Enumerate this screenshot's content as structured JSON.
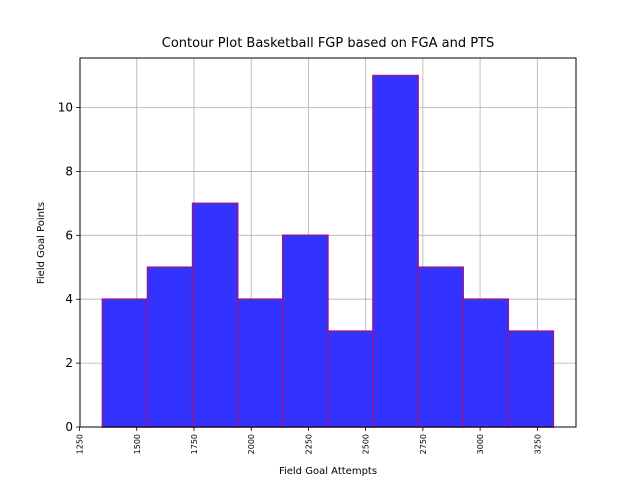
{
  "chart_data": {
    "type": "bar",
    "title": "Contour Plot Basketball FGP based on FGA and PTS",
    "xlabel": "Field Goal Attempts",
    "ylabel": "Field Goal Points",
    "bins": [
      {
        "start": 1350,
        "end": 1547,
        "value": 4
      },
      {
        "start": 1547,
        "end": 1744,
        "value": 5
      },
      {
        "start": 1744,
        "end": 1941,
        "value": 7
      },
      {
        "start": 1941,
        "end": 2138,
        "value": 4
      },
      {
        "start": 2138,
        "end": 2335,
        "value": 6
      },
      {
        "start": 2335,
        "end": 2532,
        "value": 3
      },
      {
        "start": 2532,
        "end": 2729,
        "value": 11
      },
      {
        "start": 2729,
        "end": 2926,
        "value": 5
      },
      {
        "start": 2926,
        "end": 3123,
        "value": 4
      },
      {
        "start": 3123,
        "end": 3320,
        "value": 3
      }
    ],
    "xlim": [
      1252,
      3419
    ],
    "ylim": [
      0,
      11.55
    ],
    "xticks": [
      1250,
      1500,
      1750,
      2000,
      2250,
      2500,
      2750,
      3000,
      3250
    ],
    "yticks": [
      0,
      2,
      4,
      6,
      8,
      10
    ],
    "grid": true,
    "bar_color": "#3333ff",
    "edge_color": "#8b1a9a"
  }
}
